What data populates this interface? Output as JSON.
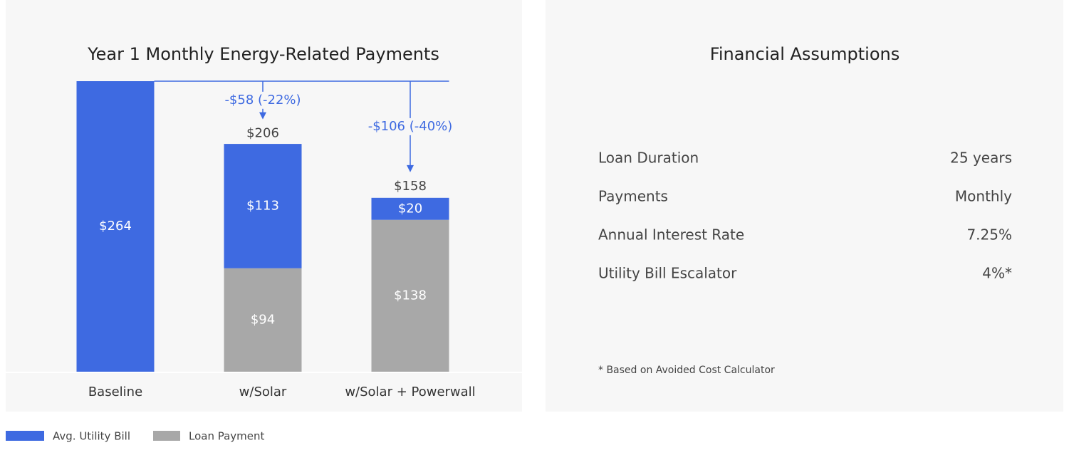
{
  "chart_data": {
    "type": "stacked-bar",
    "title": "Year 1 Monthly Energy-Related Payments",
    "categories": [
      "Baseline",
      "w/Solar",
      "w/Solar + Powerwall"
    ],
    "series": [
      {
        "name": "Avg. Utility Bill",
        "color": "#3e6ae1",
        "values": [
          264,
          113,
          20
        ],
        "value_labels": [
          "$264",
          "$113",
          "$20"
        ]
      },
      {
        "name": "Loan Payment",
        "color": "#a8a8a8",
        "values": [
          null,
          94,
          138
        ],
        "value_labels": [
          null,
          "$94",
          "$138"
        ]
      }
    ],
    "totals": [
      null,
      206,
      158
    ],
    "total_labels": [
      null,
      "$206",
      "$158"
    ],
    "annotations": [
      null,
      "-$58 (-22%)",
      "-$106 (-40%)"
    ],
    "legend": "bottom-left"
  },
  "assumptions": {
    "title": "Financial Assumptions",
    "rows": [
      {
        "label": "Loan Duration",
        "value": "25 years"
      },
      {
        "label": "Payments",
        "value": "Monthly"
      },
      {
        "label": "Annual Interest Rate",
        "value": "7.25%"
      },
      {
        "label": "Utility Bill Escalator",
        "value": "4%*"
      }
    ],
    "footnote": "* Based on Avoided Cost Calculator"
  }
}
